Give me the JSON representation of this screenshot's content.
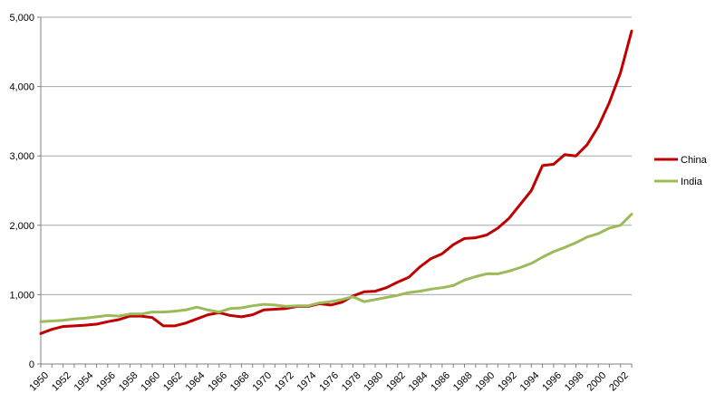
{
  "chart_data": {
    "type": "line",
    "title": "",
    "xlabel": "",
    "ylabel": "",
    "ylim": [
      0,
      5000
    ],
    "yticks": [
      "0",
      "1,000",
      "2,000",
      "3,000",
      "4,000",
      "5,000"
    ],
    "ytick_values": [
      0,
      1000,
      2000,
      3000,
      4000,
      5000
    ],
    "xlim": [
      1950,
      2003
    ],
    "xticks": [
      "1950",
      "1952",
      "1954",
      "1956",
      "1958",
      "1960",
      "1962",
      "1964",
      "1966",
      "1968",
      "1970",
      "1972",
      "1974",
      "1976",
      "1978",
      "1980",
      "1982",
      "1984",
      "1986",
      "1988",
      "1990",
      "1992",
      "1994",
      "1996",
      "1998",
      "2000",
      "2002"
    ],
    "grid": "horizontal",
    "legend": "right",
    "x": [
      1950,
      1951,
      1952,
      1953,
      1954,
      1955,
      1956,
      1957,
      1958,
      1959,
      1960,
      1961,
      1962,
      1963,
      1964,
      1965,
      1966,
      1967,
      1968,
      1969,
      1970,
      1971,
      1972,
      1973,
      1974,
      1975,
      1976,
      1977,
      1978,
      1979,
      1980,
      1981,
      1982,
      1983,
      1984,
      1985,
      1986,
      1987,
      1988,
      1989,
      1990,
      1991,
      1992,
      1993,
      1994,
      1995,
      1996,
      1997,
      1998,
      1999,
      2000,
      2001,
      2002,
      2003
    ],
    "series": [
      {
        "name": "China",
        "color": "#c00000",
        "values": [
          440,
          500,
          540,
          550,
          560,
          575,
          610,
          640,
          690,
          690,
          670,
          550,
          550,
          590,
          650,
          710,
          740,
          700,
          680,
          710,
          780,
          790,
          800,
          830,
          830,
          870,
          850,
          890,
          980,
          1040,
          1050,
          1100,
          1180,
          1250,
          1400,
          1520,
          1590,
          1720,
          1810,
          1820,
          1860,
          1960,
          2100,
          2300,
          2500,
          2860,
          2880,
          3020,
          3000,
          3160,
          3420,
          3770,
          4200,
          4800
        ]
      },
      {
        "name": "India",
        "color": "#9bbb59",
        "values": [
          610,
          620,
          630,
          650,
          660,
          680,
          700,
          690,
          720,
          720,
          750,
          750,
          760,
          780,
          820,
          780,
          750,
          800,
          810,
          840,
          860,
          850,
          830,
          840,
          840,
          880,
          900,
          930,
          970,
          900,
          930,
          960,
          990,
          1030,
          1050,
          1080,
          1100,
          1130,
          1210,
          1260,
          1300,
          1300,
          1340,
          1390,
          1450,
          1540,
          1620,
          1680,
          1750,
          1830,
          1880,
          1960,
          2000,
          2160
        ]
      }
    ]
  }
}
